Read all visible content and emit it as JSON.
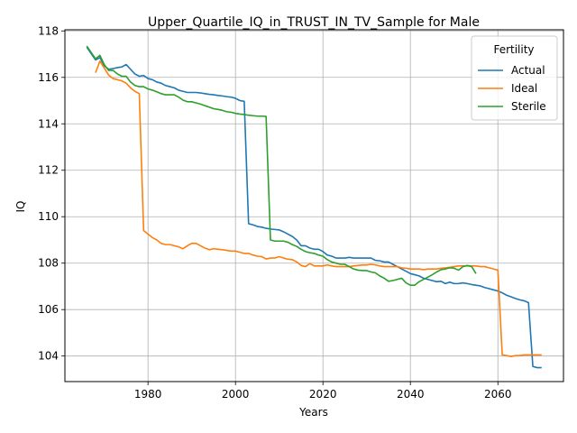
{
  "chart_data": {
    "type": "line",
    "title": "Upper_Quartile_IQ_in_TRUST_IN_TV_Sample for Male",
    "xlabel": "Years",
    "ylabel": "IQ",
    "xlim": [
      1961,
      2075
    ],
    "ylim": [
      102.9,
      118.05
    ],
    "xticks": [
      1980,
      2000,
      2020,
      2040,
      2060
    ],
    "yticks": [
      104,
      106,
      108,
      110,
      112,
      114,
      116,
      118
    ],
    "grid": true,
    "legend": {
      "title": "Fertility",
      "position": "top-right"
    },
    "series": [
      {
        "name": "Actual",
        "color": "#1f77b4",
        "x": [
          1966,
          1968,
          1969,
          1970,
          1971,
          1972,
          1973,
          1974,
          1975,
          1976,
          1977,
          1978,
          1979,
          1980,
          1981,
          1982,
          1983,
          1984,
          1985,
          1986,
          1987,
          1988,
          1989,
          1990,
          1991,
          1992,
          1993,
          1994,
          1995,
          1996,
          1997,
          1998,
          1999,
          2000,
          2001,
          2002,
          2003,
          2004,
          2005,
          2006,
          2007,
          2008,
          2009,
          2010,
          2011,
          2012,
          2013,
          2014,
          2015,
          2016,
          2017,
          2018,
          2019,
          2020,
          2021,
          2022,
          2023,
          2024,
          2025,
          2026,
          2027,
          2028,
          2029,
          2030,
          2031,
          2032,
          2033,
          2034,
          2035,
          2036,
          2037,
          2038,
          2039,
          2040,
          2041,
          2042,
          2043,
          2044,
          2045,
          2046,
          2047,
          2048,
          2049,
          2050,
          2051,
          2052,
          2053,
          2054,
          2055,
          2056,
          2057,
          2058,
          2059,
          2060,
          2061,
          2062,
          2063,
          2064,
          2065,
          2066,
          2067,
          2068,
          2069,
          2070
        ],
        "values": [
          117.3,
          116.75,
          116.85,
          116.5,
          116.35,
          116.38,
          116.42,
          116.45,
          116.55,
          116.35,
          116.15,
          116.05,
          116.08,
          115.95,
          115.9,
          115.8,
          115.75,
          115.65,
          115.6,
          115.55,
          115.45,
          115.4,
          115.35,
          115.35,
          115.35,
          115.33,
          115.3,
          115.27,
          115.25,
          115.22,
          115.2,
          115.17,
          115.15,
          115.1,
          115.0,
          114.97,
          109.7,
          109.65,
          109.58,
          109.55,
          109.5,
          109.47,
          109.45,
          109.43,
          109.35,
          109.25,
          109.15,
          109.0,
          108.75,
          108.75,
          108.65,
          108.6,
          108.6,
          108.5,
          108.35,
          108.3,
          108.22,
          108.22,
          108.22,
          108.25,
          108.22,
          108.22,
          108.22,
          108.22,
          108.22,
          108.12,
          108.1,
          108.05,
          108.05,
          107.95,
          107.85,
          107.75,
          107.65,
          107.55,
          107.5,
          107.45,
          107.35,
          107.3,
          107.25,
          107.2,
          107.22,
          107.12,
          107.18,
          107.12,
          107.12,
          107.15,
          107.12,
          107.08,
          107.05,
          107.02,
          106.95,
          106.9,
          106.85,
          106.8,
          106.72,
          106.62,
          106.55,
          106.48,
          106.42,
          106.38,
          106.3,
          103.55,
          103.5,
          103.5
        ]
      },
      {
        "name": "Ideal",
        "color": "#ff7f0e",
        "x": [
          1968,
          1969,
          1970,
          1971,
          1972,
          1973,
          1974,
          1975,
          1976,
          1977,
          1978,
          1979,
          1980,
          1981,
          1982,
          1983,
          1984,
          1985,
          1986,
          1987,
          1988,
          1989,
          1990,
          1991,
          1992,
          1993,
          1994,
          1995,
          1996,
          1997,
          1998,
          1999,
          2000,
          2001,
          2002,
          2003,
          2004,
          2005,
          2006,
          2007,
          2008,
          2009,
          2010,
          2011,
          2012,
          2013,
          2014,
          2015,
          2016,
          2017,
          2018,
          2019,
          2020,
          2021,
          2022,
          2023,
          2024,
          2025,
          2026,
          2027,
          2028,
          2029,
          2030,
          2031,
          2032,
          2033,
          2034,
          2035,
          2036,
          2037,
          2038,
          2039,
          2040,
          2041,
          2042,
          2043,
          2044,
          2045,
          2046,
          2047,
          2048,
          2049,
          2050,
          2051,
          2052,
          2053,
          2054,
          2055,
          2056,
          2057,
          2058,
          2059,
          2060,
          2061,
          2062,
          2063,
          2064,
          2065,
          2066,
          2067,
          2068,
          2069,
          2070
        ],
        "values": [
          116.2,
          116.7,
          116.4,
          116.1,
          115.95,
          115.9,
          115.85,
          115.75,
          115.55,
          115.4,
          115.3,
          109.4,
          109.25,
          109.1,
          109.0,
          108.85,
          108.8,
          108.8,
          108.75,
          108.7,
          108.62,
          108.75,
          108.85,
          108.85,
          108.75,
          108.65,
          108.58,
          108.62,
          108.6,
          108.58,
          108.55,
          108.52,
          108.52,
          108.47,
          108.42,
          108.42,
          108.35,
          108.3,
          108.28,
          108.18,
          108.22,
          108.22,
          108.28,
          108.22,
          108.17,
          108.15,
          108.05,
          107.9,
          107.85,
          107.98,
          107.88,
          107.88,
          107.88,
          107.92,
          107.88,
          107.85,
          107.85,
          107.85,
          107.85,
          107.88,
          107.9,
          107.92,
          107.92,
          107.95,
          107.92,
          107.88,
          107.85,
          107.85,
          107.85,
          107.85,
          107.8,
          107.78,
          107.75,
          107.75,
          107.75,
          107.72,
          107.75,
          107.75,
          107.75,
          107.78,
          107.8,
          107.82,
          107.85,
          107.88,
          107.88,
          107.88,
          107.88,
          107.88,
          107.85,
          107.85,
          107.8,
          107.75,
          107.7,
          104.05,
          104.02,
          103.98,
          104.02,
          104.02,
          104.05,
          104.05,
          104.05,
          104.05,
          104.05
        ]
      },
      {
        "name": "Sterile",
        "color": "#2ca02c",
        "x": [
          1966,
          1968,
          1969,
          1970,
          1971,
          1972,
          1973,
          1974,
          1975,
          1976,
          1977,
          1978,
          1979,
          1980,
          1981,
          1982,
          1983,
          1984,
          1985,
          1986,
          1987,
          1988,
          1989,
          1990,
          1991,
          1992,
          1993,
          1994,
          1995,
          1996,
          1997,
          1998,
          1999,
          2000,
          2001,
          2002,
          2003,
          2004,
          2005,
          2006,
          2007,
          2008,
          2009,
          2010,
          2011,
          2012,
          2013,
          2014,
          2015,
          2016,
          2017,
          2018,
          2019,
          2020,
          2021,
          2022,
          2023,
          2024,
          2025,
          2026,
          2027,
          2028,
          2029,
          2030,
          2031,
          2032,
          2033,
          2034,
          2035,
          2036,
          2037,
          2038,
          2039,
          2040,
          2041,
          2042,
          2043,
          2044,
          2045,
          2046,
          2047,
          2048,
          2049,
          2050,
          2051,
          2052,
          2053,
          2054,
          2055
        ],
        "values": [
          117.35,
          116.8,
          116.95,
          116.55,
          116.3,
          116.3,
          116.15,
          116.05,
          116.05,
          115.8,
          115.65,
          115.6,
          115.6,
          115.5,
          115.45,
          115.38,
          115.3,
          115.25,
          115.25,
          115.25,
          115.15,
          115.02,
          114.95,
          114.95,
          114.9,
          114.85,
          114.78,
          114.72,
          114.65,
          114.62,
          114.58,
          114.52,
          114.5,
          114.45,
          114.42,
          114.4,
          114.37,
          114.35,
          114.33,
          114.33,
          114.32,
          109.0,
          108.95,
          108.95,
          108.95,
          108.9,
          108.8,
          108.72,
          108.6,
          108.5,
          108.45,
          108.42,
          108.35,
          108.3,
          108.15,
          108.05,
          108.0,
          107.95,
          107.95,
          107.85,
          107.75,
          107.7,
          107.68,
          107.68,
          107.62,
          107.58,
          107.45,
          107.35,
          107.22,
          107.25,
          107.3,
          107.35,
          107.15,
          107.05,
          107.05,
          107.2,
          107.3,
          107.4,
          107.5,
          107.62,
          107.72,
          107.75,
          107.8,
          107.78,
          107.7,
          107.85,
          107.9,
          107.85,
          107.55
        ]
      }
    ]
  }
}
